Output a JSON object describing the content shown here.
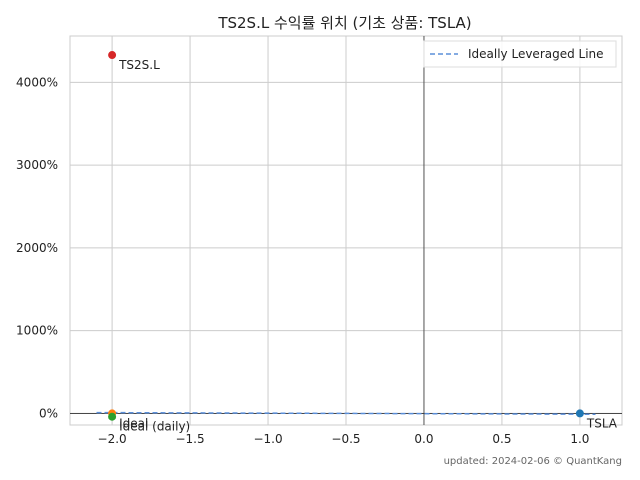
{
  "chart_data": {
    "type": "scatter",
    "title": "TS2S.L 수익률 위치 (기초 상품: TSLA)",
    "xlabel": "",
    "ylabel": "",
    "xlim": [
      -2.27,
      1.27
    ],
    "ylim": [
      -140,
      4560
    ],
    "x_ticks": [
      -2.0,
      -1.5,
      -1.0,
      -0.5,
      0.0,
      0.5,
      1.0
    ],
    "x_tick_labels": [
      "−2.0",
      "−1.5",
      "−1.0",
      "−0.5",
      "0.0",
      "0.5",
      "1.0"
    ],
    "y_ticks": [
      0,
      1000,
      2000,
      3000,
      4000
    ],
    "y_tick_labels": [
      "0%",
      "1000%",
      "2000%",
      "3000%",
      "4000%"
    ],
    "grid": true,
    "zero_lines": {
      "x": 0,
      "y": 0
    },
    "series": [
      {
        "name": "TSLA",
        "label": "TSLA",
        "color": "#1f77b4",
        "x": 1.0,
        "y": 0
      },
      {
        "name": "Ideal",
        "label": "Ideal",
        "color": "#ff7f0e",
        "x": -2.0,
        "y": 0
      },
      {
        "name": "Ideal (daily)",
        "label": "Ideal (daily)",
        "color": "#2ca02c",
        "x": -2.0,
        "y": -40
      },
      {
        "name": "TS2S.L",
        "label": "TS2S.L",
        "color": "#d62728",
        "x": -2.0,
        "y": 4330
      }
    ],
    "reference_line": {
      "name": "Ideally Leveraged Line",
      "color": "#5b8fd9",
      "style": "dashed",
      "points": [
        [
          -2.1,
          10
        ],
        [
          1.1,
          -10
        ]
      ]
    },
    "legend": {
      "position": "top-right",
      "entries": [
        "Ideally Leveraged Line"
      ]
    },
    "footer": "updated: 2024-02-06 © QuantKang"
  }
}
